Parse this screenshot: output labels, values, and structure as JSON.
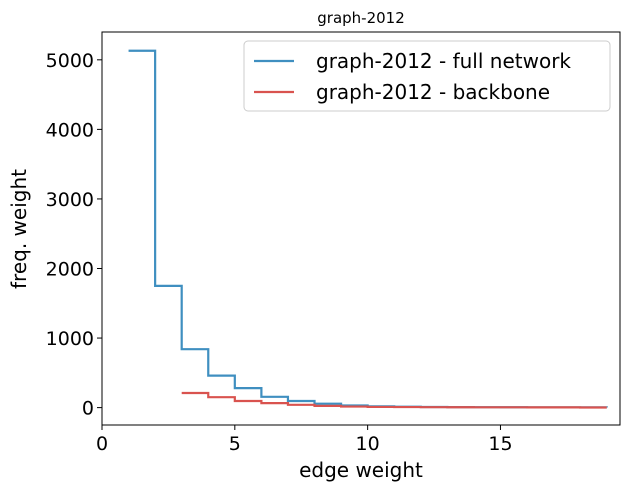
{
  "chart_data": {
    "type": "line",
    "title": "graph-2012",
    "xlabel": "edge weight",
    "ylabel": "freq. weight",
    "xlim": [
      0,
      19.5
    ],
    "ylim": [
      -250,
      5400
    ],
    "xticks": [
      0,
      5,
      10,
      15
    ],
    "xtick_labels": [
      "0",
      "5",
      "10",
      "15"
    ],
    "yticks": [
      0,
      1000,
      2000,
      3000,
      4000,
      5000
    ],
    "ytick_labels": [
      "0",
      "1000",
      "2000",
      "3000",
      "4000",
      "5000"
    ],
    "grid": false,
    "legend_position": "top-right",
    "step_style": "post",
    "series": [
      {
        "name": "graph-2012 - full network",
        "color": "#3f8fc0",
        "x": [
          1,
          2,
          3,
          4,
          5,
          6,
          7,
          8,
          9,
          10,
          11,
          12,
          13,
          14,
          15,
          16,
          17,
          18,
          19
        ],
        "y": [
          5130,
          1750,
          840,
          460,
          280,
          155,
          95,
          55,
          30,
          18,
          12,
          9,
          7,
          6,
          5,
          4,
          3,
          3,
          2
        ]
      },
      {
        "name": "graph-2012 - backbone",
        "color": "#d9534f",
        "x": [
          3,
          4,
          5,
          6,
          7,
          8,
          9,
          10,
          11,
          12,
          13,
          14,
          15,
          16,
          17,
          18,
          19
        ],
        "y": [
          210,
          150,
          95,
          65,
          40,
          25,
          15,
          10,
          8,
          6,
          5,
          4,
          4,
          3,
          3,
          2,
          2
        ]
      }
    ]
  }
}
